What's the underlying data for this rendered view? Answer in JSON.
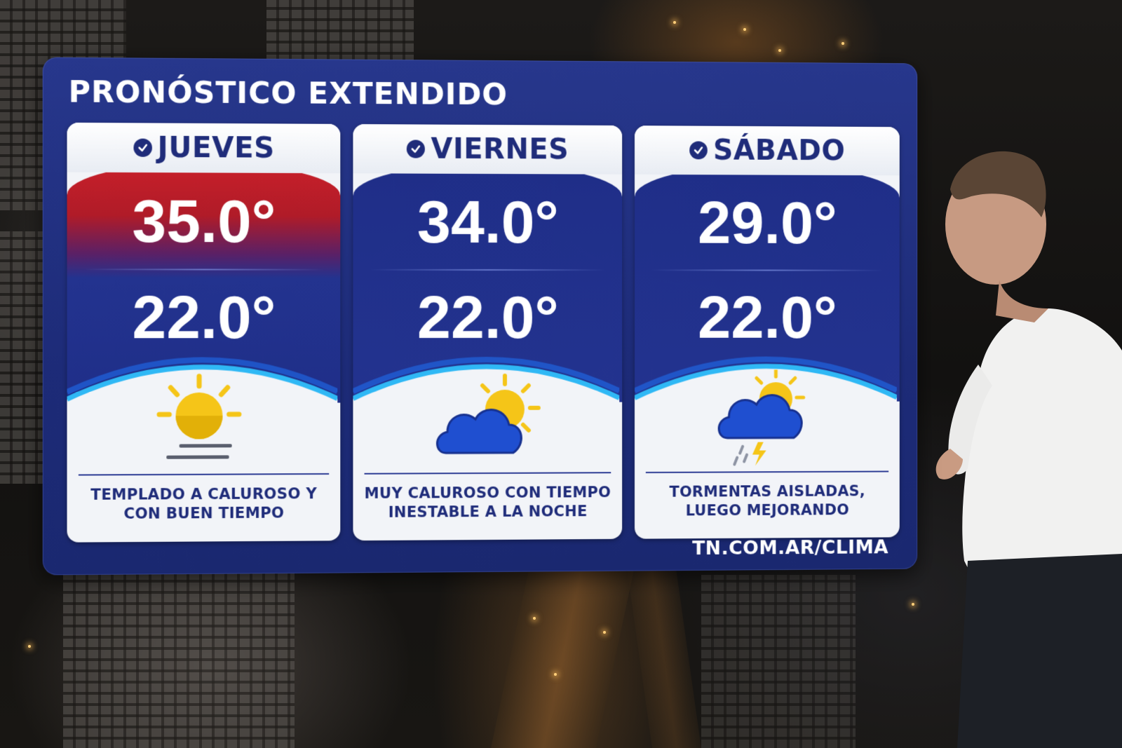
{
  "forecast": {
    "title": "PRONÓSTICO EXTENDIDO",
    "source": "TN.COM.AR/CLIMA",
    "days": [
      {
        "name": "JUEVES",
        "max": "35.0°",
        "min": "22.0°",
        "description": "TEMPLADO A CALUROSO Y CON BUEN TIEMPO",
        "icon": "sun-haze-icon",
        "accent": "#c8202a"
      },
      {
        "name": "VIERNES",
        "max": "34.0°",
        "min": "22.0°",
        "description": "MUY CALUROSO CON TIEMPO INESTABLE A LA NOCHE",
        "icon": "cloud-sun-icon",
        "accent": "#1f2e88"
      },
      {
        "name": "SÁBADO",
        "max": "29.0°",
        "min": "22.0°",
        "description": "TORMENTAS AISLADAS, LUEGO MEJORANDO",
        "icon": "thunderstorm-icon",
        "accent": "#1f2e88"
      }
    ]
  },
  "colors": {
    "panel": "#1f2c7a",
    "hot": "#c8202a",
    "sun": "#f5c518",
    "cloud": "#1f4fd0"
  }
}
